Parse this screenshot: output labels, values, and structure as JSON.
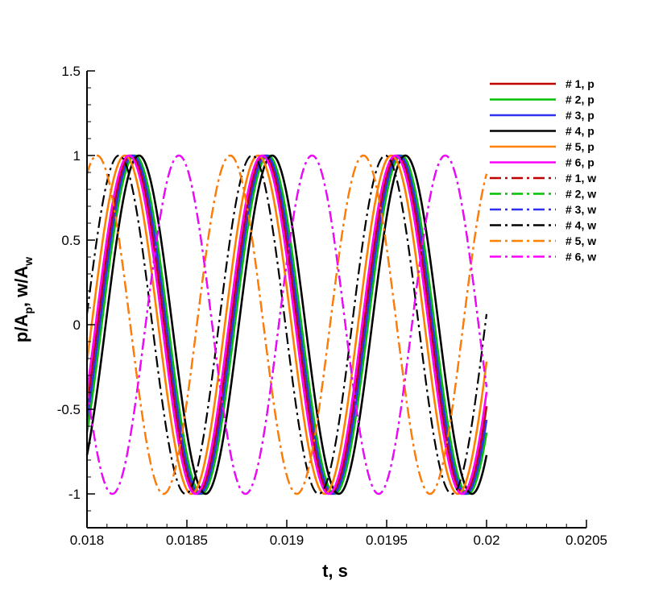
{
  "chart_data": {
    "type": "line",
    "xlabel": "t, s",
    "ylabel": {
      "base": "p/A",
      "sub1": "p",
      "mid": ", w/A",
      "sub2": "w"
    },
    "xlim": [
      0.018,
      0.0205
    ],
    "ylim": [
      -1.2,
      1.5
    ],
    "x_ticks": [
      {
        "value": 0.018,
        "label": "0.018"
      },
      {
        "value": 0.0185,
        "label": "0.0185"
      },
      {
        "value": 0.019,
        "label": "0.019"
      },
      {
        "value": 0.0195,
        "label": "0.0195"
      },
      {
        "value": 0.02,
        "label": "0.02"
      },
      {
        "value": 0.0205,
        "label": "0.0205"
      }
    ],
    "y_ticks": [
      {
        "value": 1.5,
        "label": "1.5"
      },
      {
        "value": 1,
        "label": "1"
      },
      {
        "value": 0.5,
        "label": "0.5"
      },
      {
        "value": 0,
        "label": "0"
      },
      {
        "value": -0.5,
        "label": "-0.5"
      },
      {
        "value": -1,
        "label": "-1"
      }
    ],
    "legend_position": "top-right",
    "frequency_hz": 1500,
    "t_range": [
      0.018,
      0.02
    ],
    "series": [
      {
        "name": "# 1, p",
        "color": "#c00000",
        "style": "solid",
        "value_at_t0": -0.48,
        "peaks_t": [
          0.01822,
          0.01889,
          0.01955
        ]
      },
      {
        "name": "# 2, p",
        "color": "#00c000",
        "style": "solid",
        "value_at_t0": -0.6,
        "peaks_t": [
          0.01824,
          0.01891,
          0.01957
        ]
      },
      {
        "name": "# 3, p",
        "color": "#3030f0",
        "style": "solid",
        "value_at_t0": -0.55,
        "peaks_t": [
          0.01823,
          0.0189,
          0.01956
        ]
      },
      {
        "name": "# 4, p",
        "color": "#000000",
        "style": "solid",
        "value_at_t0": -0.69,
        "peaks_t": [
          0.01826,
          0.01893,
          0.01959
        ]
      },
      {
        "name": "# 5, p",
        "color": "#ff8000",
        "style": "solid",
        "value_at_t0": -0.28,
        "peaks_t": [
          0.01819,
          0.01886,
          0.01952
        ]
      },
      {
        "name": "# 6, p",
        "color": "#ff00ff",
        "style": "solid",
        "value_at_t0": -0.42,
        "peaks_t": [
          0.01821,
          0.01888,
          0.01954
        ]
      },
      {
        "name": "# 1, w",
        "color": "#c00000",
        "style": "dashdot",
        "value_at_t0": 0.57,
        "peaks_t": [
          0.01805,
          0.01872,
          0.01939
        ]
      },
      {
        "name": "# 2, w",
        "color": "#00c000",
        "style": "dashdot",
        "value_at_t0": -0.4,
        "peaks_t": [
          0.01846,
          0.01913,
          0.0198
        ]
      },
      {
        "name": "# 3, w",
        "color": "#3030f0",
        "style": "dashdot",
        "value_at_t0": -0.4,
        "peaks_t": [
          0.01846,
          0.01913,
          0.0198
        ]
      },
      {
        "name": "# 4, w",
        "color": "#000000",
        "style": "dashdot",
        "value_at_t0": -0.28,
        "peaks_t": [
          0.01816,
          0.01883,
          0.01949
        ]
      },
      {
        "name": "# 5, w",
        "color": "#ff8000",
        "style": "dashdot",
        "value_at_t0": 0.57,
        "peaks_t": [
          0.01805,
          0.01872,
          0.01939
        ]
      },
      {
        "name": "# 6, w",
        "color": "#ff00ff",
        "style": "dashdot",
        "value_at_t0": -0.4,
        "peaks_t": [
          0.01846,
          0.01913,
          0.0198
        ]
      }
    ]
  }
}
